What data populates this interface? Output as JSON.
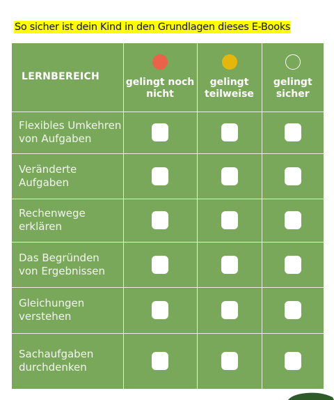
{
  "title": "So sicher ist dein Kind in den Grundlagen dieses E-Books",
  "table": {
    "header": [
      "LERNBEREICH",
      "gelingt noch nicht",
      "gelingt teilweise",
      "gelingt sicher"
    ],
    "rows": [
      "Flexibles Umkehren von Aufgaben",
      "Veränderte Aufgaben",
      "Rechenwege erklären",
      "Das Begründen von Ergebnissen",
      "Gleichungen verstehen",
      "Sachaufgaben durchdenken"
    ]
  }
}
